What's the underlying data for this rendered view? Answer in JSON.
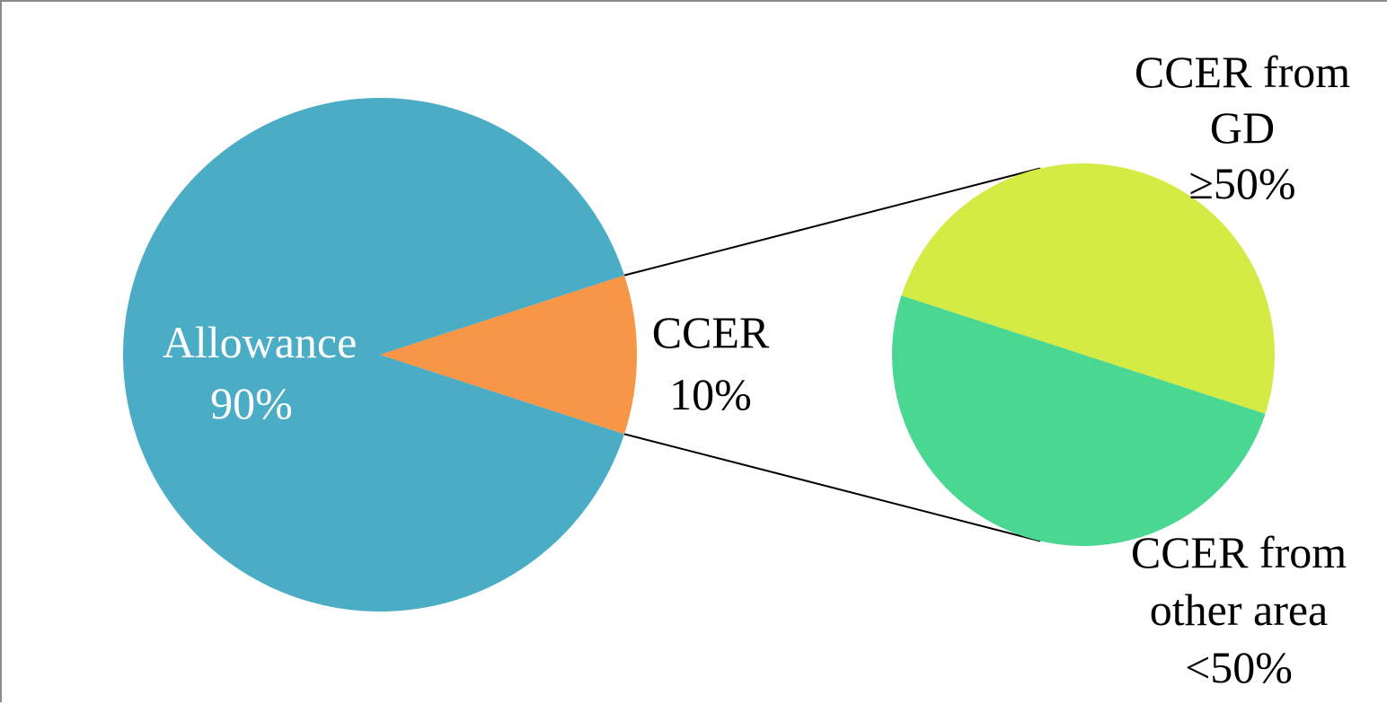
{
  "chart_data": {
    "type": "pie",
    "subtype": "pie-of-pie",
    "main": {
      "slices": [
        {
          "label": "Allowance",
          "value": 90,
          "value_label": "90%",
          "color": "#4BACC6",
          "label_color": "#FFFFFF"
        },
        {
          "label": "CCER",
          "value": 10,
          "value_label": "10%",
          "color": "#F79646",
          "label_color": "#000000"
        }
      ]
    },
    "secondary": {
      "of": "CCER",
      "slices": [
        {
          "label_lines": [
            "CCER from",
            "GD"
          ],
          "value": 50,
          "value_label": "≥50%",
          "color": "#D4EB45",
          "label_color": "#000000"
        },
        {
          "label_lines": [
            "CCER from",
            "other area"
          ],
          "value": 50,
          "value_label": "<50%",
          "color": "#4AD791",
          "label_color": "#000000"
        }
      ]
    },
    "legend": "none",
    "connector_color": "#000000"
  }
}
